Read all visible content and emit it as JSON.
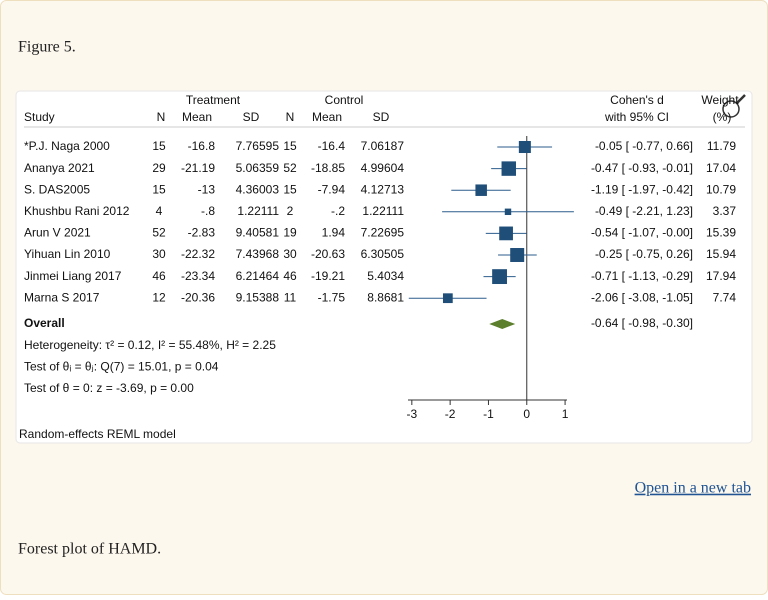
{
  "figure_label": "Figure 5.",
  "link": "Open in a new tab",
  "caption": "Forest plot of HAMD.",
  "chart_data": {
    "type": "forest",
    "group_headers": [
      "Treatment",
      "Control"
    ],
    "columns": [
      "Study",
      "N",
      "Mean",
      "SD",
      "N",
      "Mean",
      "SD"
    ],
    "effect_header": [
      "Cohen's d",
      "with 95% CI"
    ],
    "weight_header": [
      "Weight",
      "(%)"
    ],
    "rows": [
      {
        "study": "*P.J. Naga 2000",
        "n1": "15",
        "mean1": "-16.8",
        "sd1": "7.76595",
        "n2": "15",
        "mean2": "-16.4",
        "sd2": "7.06187",
        "d": -0.05,
        "lower": -0.77,
        "upper": 0.66,
        "ci_label": "-0.05 [ -0.77, 0.66]",
        "weight": 11.79
      },
      {
        "study": "Ananya 2021",
        "n1": "29",
        "mean1": "-21.19",
        "sd1": "5.06359",
        "n2": "52",
        "mean2": "-18.85",
        "sd2": "4.99604",
        "d": -0.47,
        "lower": -0.93,
        "upper": -0.01,
        "ci_label": "-0.47 [ -0.93, -0.01]",
        "weight": 17.04
      },
      {
        "study": "S. DAS2005",
        "n1": "15",
        "mean1": "-13",
        "sd1": "4.36003",
        "n2": "15",
        "mean2": "-7.94",
        "sd2": "4.12713",
        "d": -1.19,
        "lower": -1.97,
        "upper": -0.42,
        "ci_label": "-1.19 [ -1.97, -0.42]",
        "weight": 10.79
      },
      {
        "study": "Khushbu Rani 2012",
        "n1": "4",
        "mean1": "-.8",
        "sd1": "1.22111",
        "n2": "2",
        "mean2": "-.2",
        "sd2": "1.22111",
        "d": -0.49,
        "lower": -2.21,
        "upper": 1.23,
        "ci_label": "-0.49 [ -2.21, 1.23]",
        "weight": 3.37
      },
      {
        "study": "Arun V 2021",
        "n1": "52",
        "mean1": "-2.83",
        "sd1": "9.40581",
        "n2": "19",
        "mean2": "1.94",
        "sd2": "7.22695",
        "d": -0.54,
        "lower": -1.07,
        "upper": -0.0,
        "ci_label": "-0.54 [ -1.07, -0.00]",
        "weight": 15.39
      },
      {
        "study": "Yihuan Lin 2010",
        "n1": "30",
        "mean1": "-22.32",
        "sd1": "7.43968",
        "n2": "30",
        "mean2": "-20.63",
        "sd2": "6.30505",
        "d": -0.25,
        "lower": -0.75,
        "upper": 0.26,
        "ci_label": "-0.25 [ -0.75, 0.26]",
        "weight": 15.94
      },
      {
        "study": "Jinmei Liang 2017",
        "n1": "46",
        "mean1": "-23.34",
        "sd1": "6.21464",
        "n2": "46",
        "mean2": "-19.21",
        "sd2": "5.4034",
        "d": -0.71,
        "lower": -1.13,
        "upper": -0.29,
        "ci_label": "-0.71 [ -1.13, -0.29]",
        "weight": 17.94
      },
      {
        "study": "Marna S 2017",
        "n1": "12",
        "mean1": "-20.36",
        "sd1": "9.15388",
        "n2": "11",
        "mean2": "-1.75",
        "sd2": "8.8681",
        "d": -2.06,
        "lower": -3.08,
        "upper": -1.05,
        "ci_label": "-2.06 [ -3.08, -1.05]",
        "weight": 7.74
      }
    ],
    "overall": {
      "label": "Overall",
      "d": -0.64,
      "lower": -0.98,
      "upper": -0.3,
      "ci_label": "-0.64 [ -0.98, -0.30]"
    },
    "notes": [
      "Heterogeneity: τ² = 0.12, I² = 55.48%, H² = 2.25",
      "Test of θᵢ = θⱼ: Q(7) = 15.01, p = 0.04",
      "Test of θ = 0: z = -3.69, p = 0.00"
    ],
    "model": "Random-effects REML model",
    "xlim": [
      -3.1,
      1.05
    ],
    "xticks": [
      -3,
      -2,
      -1,
      0,
      1
    ],
    "marker_color": "#1f4e79",
    "line_color": "#2b5d8c",
    "diamond_color": "#5b7f2c"
  }
}
